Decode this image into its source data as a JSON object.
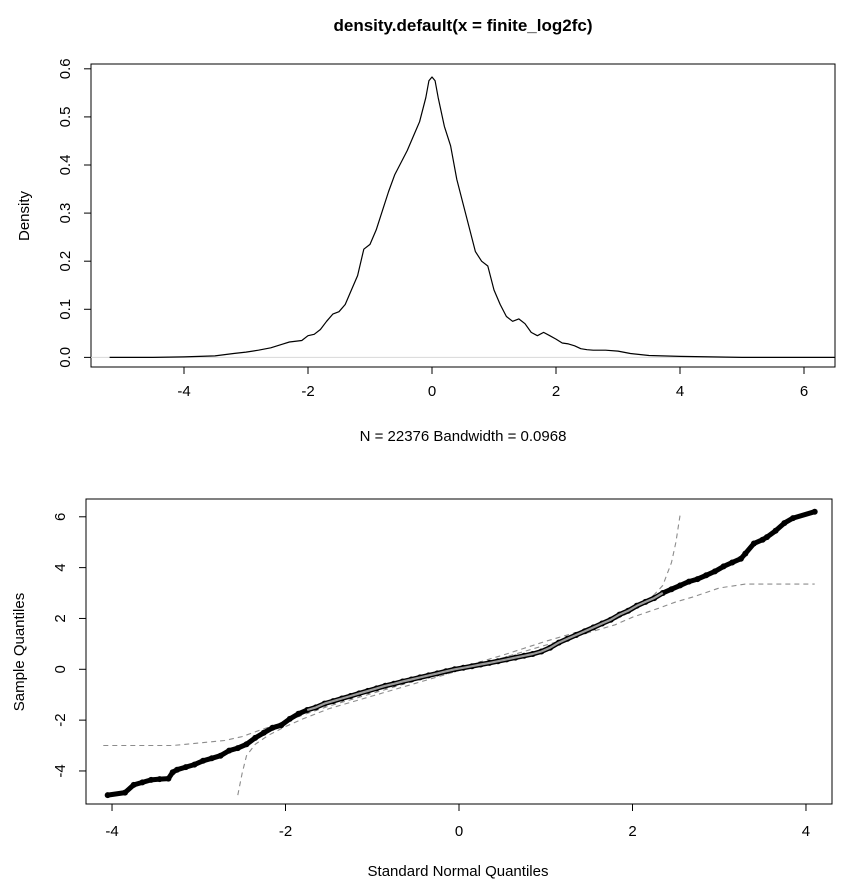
{
  "chart_data": [
    {
      "type": "line",
      "title": "density.default(x = finite_log2fc)",
      "xlabel": "",
      "subtitle": "N = 22376   Bandwidth = 0.0968",
      "ylabel": "Density",
      "xlim": [
        -5.5,
        6.5
      ],
      "ylim": [
        -0.02,
        0.61
      ],
      "xticks": [
        "-4",
        "-2",
        "0",
        "2",
        "4",
        "6"
      ],
      "yticks": [
        "0.0",
        "0.1",
        "0.2",
        "0.3",
        "0.4",
        "0.5",
        "0.6"
      ],
      "grid": false,
      "series": [
        {
          "x": [
            -5.2,
            -4.5,
            -4.0,
            -3.5,
            -3.2,
            -3.0,
            -2.8,
            -2.6,
            -2.4,
            -2.3,
            -2.1,
            -2.0,
            -1.9,
            -1.8,
            -1.7,
            -1.6,
            -1.5,
            -1.4,
            -1.3,
            -1.2,
            -1.1,
            -1.0,
            -0.9,
            -0.8,
            -0.7,
            -0.6,
            -0.5,
            -0.4,
            -0.3,
            -0.2,
            -0.1,
            -0.05,
            0.0,
            0.05,
            0.1,
            0.2,
            0.3,
            0.4,
            0.5,
            0.6,
            0.7,
            0.8,
            0.9,
            1.0,
            1.1,
            1.2,
            1.3,
            1.4,
            1.5,
            1.6,
            1.7,
            1.8,
            1.9,
            2.0,
            2.1,
            2.2,
            2.3,
            2.4,
            2.5,
            2.6,
            2.8,
            3.0,
            3.2,
            3.5,
            4.0,
            4.5,
            5.0,
            6.0,
            6.5
          ],
          "y": [
            0.0,
            0.0,
            0.001,
            0.003,
            0.008,
            0.011,
            0.015,
            0.02,
            0.028,
            0.032,
            0.035,
            0.045,
            0.048,
            0.058,
            0.075,
            0.09,
            0.095,
            0.11,
            0.14,
            0.17,
            0.225,
            0.235,
            0.265,
            0.305,
            0.345,
            0.38,
            0.405,
            0.43,
            0.46,
            0.49,
            0.54,
            0.575,
            0.583,
            0.575,
            0.54,
            0.48,
            0.44,
            0.37,
            0.32,
            0.27,
            0.22,
            0.2,
            0.19,
            0.14,
            0.11,
            0.085,
            0.075,
            0.08,
            0.07,
            0.052,
            0.045,
            0.052,
            0.045,
            0.038,
            0.03,
            0.028,
            0.024,
            0.018,
            0.016,
            0.015,
            0.015,
            0.013,
            0.008,
            0.004,
            0.002,
            0.001,
            0.0,
            0.0,
            0.0
          ]
        }
      ]
    },
    {
      "type": "scatter",
      "title": "",
      "xlabel": "Standard Normal Quantiles",
      "ylabel": "Sample Quantiles",
      "xlim": [
        -4.3,
        4.3
      ],
      "ylim": [
        -5.3,
        6.7
      ],
      "xticks": [
        "-4",
        "-2",
        "0",
        "2",
        "4"
      ],
      "yticks": [
        "-4",
        "-2",
        "0",
        "2",
        "4",
        "6"
      ],
      "grid": false,
      "series": [
        {
          "name": "",
          "x": [
            -4.05,
            -3.85,
            -3.75,
            -3.65,
            -3.55,
            -3.45,
            -3.35,
            -3.3,
            -3.25,
            -3.15,
            -3.05,
            -2.95,
            -2.85,
            -2.75,
            -2.65,
            -2.55,
            -2.45,
            -2.35,
            -2.25,
            -2.15,
            -2.05,
            -1.95,
            -1.85,
            -1.75,
            -1.65,
            -1.55,
            -1.45,
            -1.35,
            -1.25,
            -1.15,
            -1.05,
            -0.95,
            -0.85,
            -0.75,
            -0.65,
            -0.55,
            -0.45,
            -0.35,
            -0.25,
            -0.15,
            -0.05,
            0.05,
            0.15,
            0.25,
            0.35,
            0.45,
            0.55,
            0.65,
            0.75,
            0.85,
            0.95,
            1.05,
            1.15,
            1.25,
            1.35,
            1.45,
            1.55,
            1.65,
            1.75,
            1.85,
            1.95,
            2.05,
            2.15,
            2.25,
            2.35,
            2.45,
            2.55,
            2.65,
            2.75,
            2.85,
            2.95,
            3.05,
            3.15,
            3.25,
            3.3,
            3.4,
            3.5,
            3.55,
            3.65,
            3.75,
            3.85,
            4.1
          ],
          "y": [
            -4.95,
            -4.85,
            -4.55,
            -4.45,
            -4.35,
            -4.32,
            -4.3,
            -4.05,
            -3.95,
            -3.85,
            -3.75,
            -3.6,
            -3.5,
            -3.4,
            -3.2,
            -3.1,
            -2.95,
            -2.7,
            -2.5,
            -2.3,
            -2.2,
            -1.95,
            -1.75,
            -1.6,
            -1.5,
            -1.35,
            -1.25,
            -1.15,
            -1.05,
            -0.95,
            -0.85,
            -0.75,
            -0.65,
            -0.57,
            -0.48,
            -0.4,
            -0.32,
            -0.24,
            -0.16,
            -0.08,
            0.0,
            0.06,
            0.12,
            0.19,
            0.25,
            0.32,
            0.39,
            0.46,
            0.53,
            0.6,
            0.7,
            0.85,
            1.05,
            1.2,
            1.35,
            1.5,
            1.65,
            1.8,
            1.95,
            2.15,
            2.3,
            2.5,
            2.65,
            2.8,
            3.0,
            3.15,
            3.3,
            3.45,
            3.55,
            3.7,
            3.85,
            4.05,
            4.2,
            4.35,
            4.55,
            4.95,
            5.1,
            5.2,
            5.45,
            5.75,
            5.95,
            6.2
          ]
        },
        {
          "name": "",
          "style": "dashed",
          "x": [
            -4.1,
            -3.3,
            -3.0,
            -2.7,
            -2.5,
            -2.3,
            -2.0,
            -1.8,
            -1.5,
            -1.0,
            -0.5,
            0.0,
            0.5,
            1.0,
            1.5,
            1.8,
            2.0,
            2.2,
            2.35,
            2.45,
            2.5,
            2.55
          ],
          "y": [
            -3.0,
            -3.0,
            -2.9,
            -2.8,
            -2.65,
            -2.4,
            -2.05,
            -1.8,
            -1.45,
            -0.95,
            -0.45,
            0.05,
            0.55,
            1.1,
            1.6,
            1.95,
            2.3,
            2.75,
            3.3,
            4.2,
            5.0,
            6.1
          ]
        },
        {
          "name": "",
          "style": "dashed",
          "x": [
            -2.55,
            -2.5,
            -2.45,
            -2.35,
            -2.2,
            -2.0,
            -1.8,
            -1.5,
            -1.0,
            -0.5,
            0.0,
            0.5,
            1.0,
            1.5,
            1.8,
            2.0,
            2.3,
            2.5,
            2.7,
            3.0,
            3.3,
            4.1
          ],
          "y": [
            -4.95,
            -4.1,
            -3.4,
            -2.95,
            -2.6,
            -2.25,
            -1.95,
            -1.55,
            -1.05,
            -0.55,
            -0.05,
            0.45,
            0.95,
            1.45,
            1.75,
            2.05,
            2.4,
            2.65,
            2.85,
            3.2,
            3.35,
            3.35
          ]
        }
      ]
    }
  ]
}
